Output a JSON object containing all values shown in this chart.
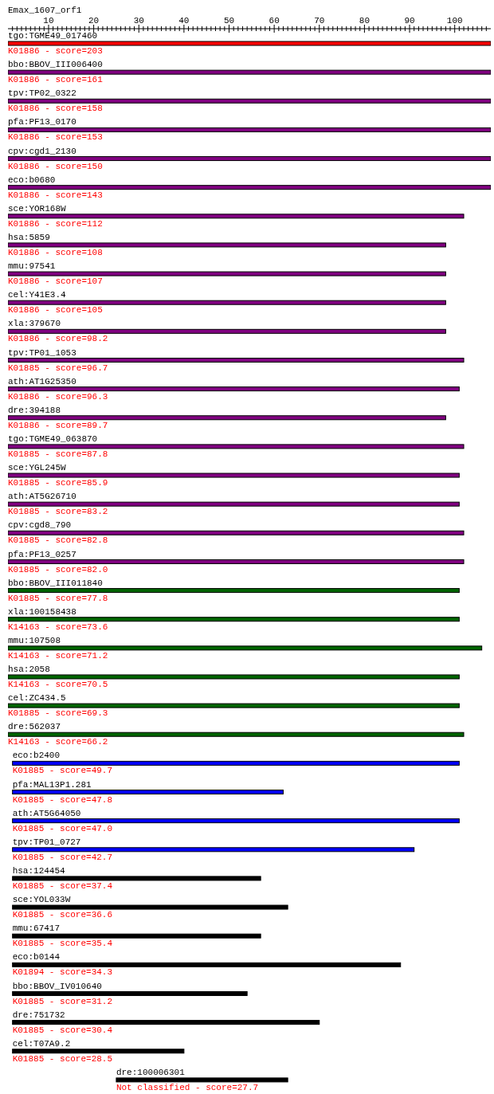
{
  "chart_data": {
    "type": "bar",
    "orientation": "horizontal",
    "title": "Emax_1607_orf1",
    "categories": [
      "tgo:TGME49_017460",
      "bbo:BBOV_III006400",
      "tpv:TP02_0322",
      "pfa:PF13_0170",
      "cpv:cgd1_2130",
      "eco:b0680",
      "sce:YOR168W",
      "hsa:5859",
      "mmu:97541",
      "cel:Y41E3.4",
      "xla:379670",
      "tpv:TP01_1053",
      "ath:AT1G25350",
      "dre:394188",
      "tgo:TGME49_063870",
      "sce:YGL245W",
      "ath:AT5G26710",
      "cpv:cgd8_790",
      "pfa:PF13_0257",
      "bbo:BBOV_III011840",
      "xla:100158438",
      "mmu:107508",
      "hsa:2058",
      "cel:ZC434.5",
      "dre:562037",
      "eco:b2400",
      "pfa:MAL13P1.281",
      "ath:AT5G64050",
      "tpv:TP01_0727",
      "hsa:124454",
      "sce:YOL033W",
      "mmu:67417",
      "eco:b0144",
      "bbo:BBOV_IV010640",
      "dre:751732",
      "cel:T07A9.2",
      "dre:100006301"
    ],
    "base": [
      1,
      1,
      1,
      1,
      1,
      1,
      1,
      1,
      1,
      1,
      1,
      1,
      1,
      1,
      1,
      1,
      1,
      1,
      1,
      1,
      1,
      1,
      1,
      1,
      1,
      2,
      2,
      2,
      2,
      2,
      2,
      2,
      2,
      2,
      2,
      2,
      25
    ],
    "values": [
      107,
      107,
      107,
      107,
      107,
      107,
      101,
      97,
      97,
      97,
      97,
      101,
      100,
      97,
      101,
      100,
      100,
      101,
      101,
      100,
      100,
      105,
      100,
      100,
      101,
      99,
      60,
      99,
      89,
      55,
      61,
      55,
      86,
      52,
      68,
      38,
      38
    ],
    "colors": [
      "#ff0000",
      "#800080",
      "#800080",
      "#800080",
      "#800080",
      "#800080",
      "#800080",
      "#800080",
      "#800080",
      "#800080",
      "#800080",
      "#800080",
      "#800080",
      "#800080",
      "#800080",
      "#800080",
      "#800080",
      "#800080",
      "#800080",
      "#006400",
      "#006400",
      "#006400",
      "#006400",
      "#006400",
      "#006400",
      "#0000ff",
      "#0000ff",
      "#0000ff",
      "#0000ff",
      "#000000",
      "#000000",
      "#000000",
      "#000000",
      "#000000",
      "#000000",
      "#000000",
      "#000000"
    ],
    "xlim": [
      1,
      108
    ],
    "xticks": [
      {
        "value": 2,
        "label": null
      },
      {
        "value": 3,
        "label": null
      },
      {
        "value": 4,
        "label": null
      },
      {
        "value": 5,
        "label": null
      },
      {
        "value": 6,
        "label": null
      },
      {
        "value": 7,
        "label": null
      },
      {
        "value": 8,
        "label": null
      },
      {
        "value": 9,
        "label": null
      },
      10,
      {
        "value": 11,
        "label": null
      },
      {
        "value": 12,
        "label": null
      },
      {
        "value": 13,
        "label": null
      },
      {
        "value": 14,
        "label": null
      },
      {
        "value": 15,
        "label": null
      },
      {
        "value": 16,
        "label": null
      },
      {
        "value": 17,
        "label": null
      },
      {
        "value": 18,
        "label": null
      },
      {
        "value": 19,
        "label": null
      },
      20,
      {
        "value": 21,
        "label": null
      },
      {
        "value": 22,
        "label": null
      },
      {
        "value": 23,
        "label": null
      },
      {
        "value": 24,
        "label": null
      },
      {
        "value": 25,
        "label": null
      },
      {
        "value": 26,
        "label": null
      },
      {
        "value": 27,
        "label": null
      },
      {
        "value": 28,
        "label": null
      },
      {
        "value": 29,
        "label": null
      },
      30,
      {
        "value": 31,
        "label": null
      },
      {
        "value": 32,
        "label": null
      },
      {
        "value": 33,
        "label": null
      },
      {
        "value": 34,
        "label": null
      },
      {
        "value": 35,
        "label": null
      },
      {
        "value": 36,
        "label": null
      },
      {
        "value": 37,
        "label": null
      },
      {
        "value": 38,
        "label": null
      },
      {
        "value": 39,
        "label": null
      },
      40,
      {
        "value": 41,
        "label": null
      },
      {
        "value": 42,
        "label": null
      },
      {
        "value": 43,
        "label": null
      },
      {
        "value": 44,
        "label": null
      },
      {
        "value": 45,
        "label": null
      },
      {
        "value": 46,
        "label": null
      },
      {
        "value": 47,
        "label": null
      },
      {
        "value": 48,
        "label": null
      },
      {
        "value": 49,
        "label": null
      },
      50,
      {
        "value": 51,
        "label": null
      },
      {
        "value": 52,
        "label": null
      },
      {
        "value": 53,
        "label": null
      },
      {
        "value": 54,
        "label": null
      },
      {
        "value": 55,
        "label": null
      },
      {
        "value": 56,
        "label": null
      },
      {
        "value": 57,
        "label": null
      },
      {
        "value": 58,
        "label": null
      },
      {
        "value": 59,
        "label": null
      },
      60,
      {
        "value": 61,
        "label": null
      },
      {
        "value": 62,
        "label": null
      },
      {
        "value": 63,
        "label": null
      },
      {
        "value": 64,
        "label": null
      },
      {
        "value": 65,
        "label": null
      },
      {
        "value": 66,
        "label": null
      },
      {
        "value": 67,
        "label": null
      },
      {
        "value": 68,
        "label": null
      },
      {
        "value": 69,
        "label": null
      },
      70,
      {
        "value": 71,
        "label": null
      },
      {
        "value": 72,
        "label": null
      },
      {
        "value": 73,
        "label": null
      },
      {
        "value": 74,
        "label": null
      },
      {
        "value": 75,
        "label": null
      },
      {
        "value": 76,
        "label": null
      },
      {
        "value": 77,
        "label": null
      },
      {
        "value": 78,
        "label": null
      },
      {
        "value": 79,
        "label": null
      },
      80,
      {
        "value": 81,
        "label": null
      },
      {
        "value": 82,
        "label": null
      },
      {
        "value": 83,
        "label": null
      },
      {
        "value": 84,
        "label": null
      },
      {
        "value": 85,
        "label": null
      },
      {
        "value": 86,
        "label": null
      },
      {
        "value": 87,
        "label": null
      },
      {
        "value": 88,
        "label": null
      },
      {
        "value": 89,
        "label": null
      },
      90,
      {
        "value": 91,
        "label": null
      },
      {
        "value": 92,
        "label": null
      },
      {
        "value": 93,
        "label": null
      },
      {
        "value": 94,
        "label": null
      },
      {
        "value": 95,
        "label": null
      },
      {
        "value": 96,
        "label": null
      },
      {
        "value": 97,
        "label": null
      },
      {
        "value": 98,
        "label": null
      },
      {
        "value": 99,
        "label": null
      },
      100,
      {
        "value": 101,
        "label": null
      },
      {
        "value": 102,
        "label": null
      },
      {
        "value": 103,
        "label": null
      },
      {
        "value": 104,
        "label": null
      },
      {
        "value": 105,
        "label": null
      },
      {
        "value": 106,
        "label": null
      },
      {
        "value": 107,
        "label": null
      }
    ],
    "annotations": [
      {
        "text": "K01886 - score=203",
        "x": 1,
        "y": "tgo:TGME49_017460"
      },
      {
        "text": "K01886 - score=161",
        "x": 1,
        "y": "bbo:BBOV_III006400"
      },
      {
        "text": "K01886 - score=158",
        "x": 1,
        "y": "tpv:TP02_0322"
      },
      {
        "text": "K01886 - score=153",
        "x": 1,
        "y": "pfa:PF13_0170"
      },
      {
        "text": "K01886 - score=150",
        "x": 1,
        "y": "cpv:cgd1_2130"
      },
      {
        "text": "K01886 - score=143",
        "x": 1,
        "y": "eco:b0680"
      },
      {
        "text": "K01886 - score=112",
        "x": 1,
        "y": "sce:YOR168W"
      },
      {
        "text": "K01886 - score=108",
        "x": 1,
        "y": "hsa:5859"
      },
      {
        "text": "K01886 - score=107",
        "x": 1,
        "y": "mmu:97541"
      },
      {
        "text": "K01886 - score=105",
        "x": 1,
        "y": "cel:Y41E3.4"
      },
      {
        "text": "K01886 - score=98.2",
        "x": 1,
        "y": "xla:379670"
      },
      {
        "text": "K01885 - score=96.7",
        "x": 1,
        "y": "tpv:TP01_1053"
      },
      {
        "text": "K01886 - score=96.3",
        "x": 1,
        "y": "ath:AT1G25350"
      },
      {
        "text": "K01886 - score=89.7",
        "x": 1,
        "y": "dre:394188"
      },
      {
        "text": "K01885 - score=87.8",
        "x": 1,
        "y": "tgo:TGME49_063870"
      },
      {
        "text": "K01885 - score=85.9",
        "x": 1,
        "y": "sce:YGL245W"
      },
      {
        "text": "K01885 - score=83.2",
        "x": 1,
        "y": "ath:AT5G26710"
      },
      {
        "text": "K01885 - score=82.8",
        "x": 1,
        "y": "cpv:cgd8_790"
      },
      {
        "text": "K01885 - score=82.0",
        "x": 1,
        "y": "pfa:PF13_0257"
      },
      {
        "text": "K01885 - score=77.8",
        "x": 1,
        "y": "bbo:BBOV_III011840"
      },
      {
        "text": "K14163 - score=73.6",
        "x": 1,
        "y": "xla:100158438"
      },
      {
        "text": "K14163 - score=71.2",
        "x": 1,
        "y": "mmu:107508"
      },
      {
        "text": "K14163 - score=70.5",
        "x": 1,
        "y": "hsa:2058"
      },
      {
        "text": "K01885 - score=69.3",
        "x": 1,
        "y": "cel:ZC434.5"
      },
      {
        "text": "K14163 - score=66.2",
        "x": 1,
        "y": "dre:562037"
      },
      {
        "text": "K01885 - score=49.7",
        "x": 2,
        "y": "eco:b2400"
      },
      {
        "text": "K01885 - score=47.8",
        "x": 2,
        "y": "pfa:MAL13P1.281"
      },
      {
        "text": "K01885 - score=47.0",
        "x": 2,
        "y": "ath:AT5G64050"
      },
      {
        "text": "K01885 - score=42.7",
        "x": 2,
        "y": "tpv:TP01_0727"
      },
      {
        "text": "K01885 - score=37.4",
        "x": 2,
        "y": "hsa:124454"
      },
      {
        "text": "K01885 - score=36.6",
        "x": 2,
        "y": "sce:YOL033W"
      },
      {
        "text": "K01885 - score=35.4",
        "x": 2,
        "y": "mmu:67417"
      },
      {
        "text": "K01894 - score=34.3",
        "x": 2,
        "y": "eco:b0144"
      },
      {
        "text": "K01885 - score=31.2",
        "x": 2,
        "y": "bbo:BBOV_IV010640"
      },
      {
        "text": "K01885 - score=30.4",
        "x": 2,
        "y": "dre:751732"
      },
      {
        "text": "K01885 - score=28.5",
        "x": 2,
        "y": "cel:T07A9.2"
      },
      {
        "text": "Not classified - score=27.7",
        "x": 25,
        "y": "dre:100006301"
      }
    ],
    "grid": false,
    "legend": false
  }
}
